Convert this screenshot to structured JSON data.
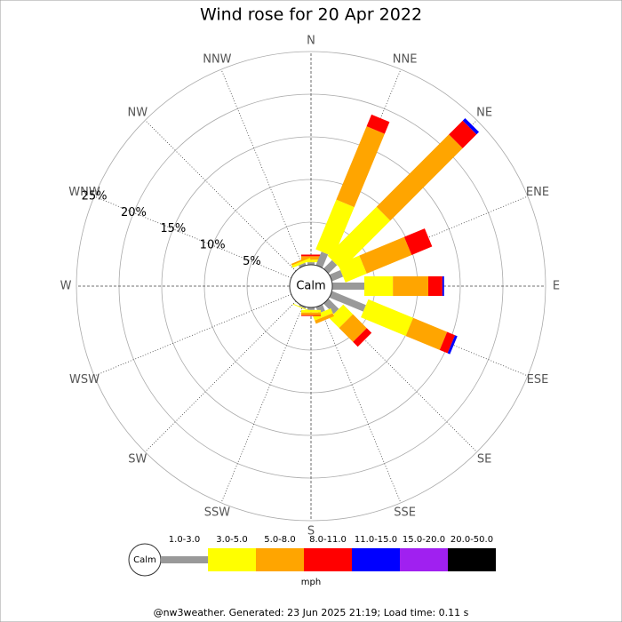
{
  "chart_data": {
    "type": "windrose",
    "title": "Wind rose for 20 Apr 2022",
    "categories": [
      "N",
      "NNE",
      "NE",
      "ENE",
      "E",
      "ESE",
      "SE",
      "SSE",
      "S",
      "SSW",
      "SW",
      "WSW",
      "W",
      "WNW",
      "NW",
      "NNW"
    ],
    "calm_label": "Calm",
    "rlim": [
      0,
      25
    ],
    "rticks": [
      {
        "value": 5,
        "label": "5%"
      },
      {
        "value": 10,
        "label": "10%"
      },
      {
        "value": 15,
        "label": "15%"
      },
      {
        "value": 20,
        "label": "20%"
      },
      {
        "value": 25,
        "label": "25%"
      }
    ],
    "series": [
      {
        "name": "1.0-3.0",
        "color": "#999999",
        "values": [
          0.3,
          1.7,
          1.4,
          1.4,
          3.75,
          4.3,
          1.7,
          0.8,
          0.3,
          0.2,
          0,
          0,
          0,
          0,
          0,
          0.3
        ]
      },
      {
        "name": "3.0-5.0",
        "color": "#ffff00",
        "values": [
          0.3,
          6.3,
          8.1,
          2.7,
          3.35,
          5.7,
          1.6,
          0.6,
          0.3,
          0.1,
          0,
          0,
          0,
          0,
          0,
          0.3
        ]
      },
      {
        "name": "5.0-8.0",
        "color": "#ffa500",
        "values": [
          0.4,
          9.3,
          12.0,
          5.7,
          4.15,
          4.3,
          2.3,
          0.4,
          0.3,
          0,
          0,
          0,
          0,
          0,
          0,
          0.2
        ]
      },
      {
        "name": "8.0-11.0",
        "color": "#ff0000",
        "values": [
          0.2,
          1.5,
          2.3,
          2.6,
          1.65,
          1.0,
          0.8,
          0,
          0.1,
          0,
          0,
          0,
          0,
          0,
          0,
          0
        ]
      },
      {
        "name": "11.0-15.0",
        "color": "#0000ff",
        "values": [
          0,
          0,
          0.4,
          0,
          0.2,
          0.3,
          0,
          0,
          0,
          0,
          0,
          0,
          0,
          0,
          0,
          0
        ]
      },
      {
        "name": "15.0-20.0",
        "color": "#a020f0",
        "values": [
          0,
          0,
          0,
          0,
          0,
          0,
          0,
          0,
          0,
          0,
          0,
          0,
          0,
          0,
          0,
          0
        ]
      },
      {
        "name": "20.0-50.0",
        "color": "#000000",
        "values": [
          0,
          0,
          0,
          0,
          0,
          0,
          0,
          0,
          0,
          0,
          0,
          0,
          0,
          0,
          0,
          0
        ]
      }
    ],
    "unit_label": "mph",
    "footer": "@nw3weather. Generated: 23 Jun 2025 21:19; Load time: 0.11 s"
  }
}
